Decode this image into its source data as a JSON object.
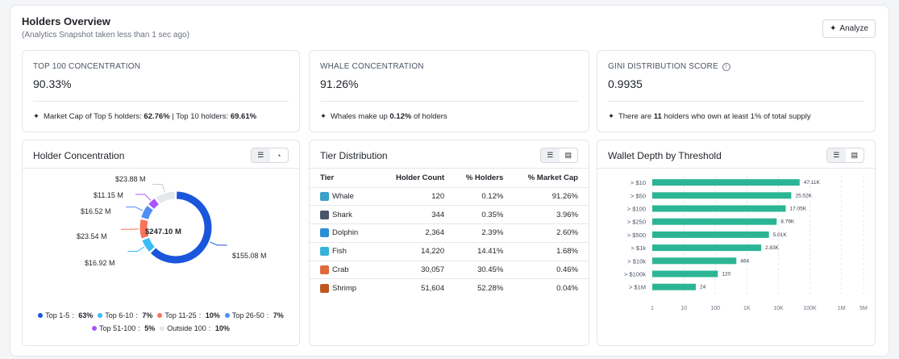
{
  "header": {
    "title": "Holders Overview",
    "subtitle": "(Analytics Snapshot taken less than 1 sec ago)",
    "analyze_label": "Analyze"
  },
  "stats": [
    {
      "label": "TOP 100 CONCENTRATION",
      "value": "90.33%",
      "note_parts": [
        "Market Cap of Top 5 holders: ",
        "62.76%",
        " | Top 10 holders: ",
        "69.61%"
      ]
    },
    {
      "label": "WHALE CONCENTRATION",
      "value": "91.26%",
      "note_parts": [
        "Whales make up ",
        "0.12%",
        " of holders",
        ""
      ]
    },
    {
      "label": "GINI DISTRIBUTION SCORE",
      "value": "0.9935",
      "note_parts": [
        "There are ",
        "11",
        " holders who own at least 1% of total supply",
        ""
      ]
    }
  ],
  "holder_concentration": {
    "title": "Holder Concentration",
    "center_label": "$247.10 M",
    "segments": [
      {
        "name": "Top 1-5",
        "pct": "63%",
        "fraction": 0.6276,
        "value_label": "$155.08 M",
        "color": "#1a56db"
      },
      {
        "name": "Top 6-10",
        "pct": "7%",
        "fraction": 0.0685,
        "value_label": "$16.92 M",
        "color": "#38bdf8"
      },
      {
        "name": "Top 11-25",
        "pct": "10%",
        "fraction": 0.0953,
        "value_label": "$23.54 M",
        "color": "#f97359"
      },
      {
        "name": "Top 26-50",
        "pct": "7%",
        "fraction": 0.0669,
        "value_label": "$16.52 M",
        "color": "#4f8ef7"
      },
      {
        "name": "Top 51-100",
        "pct": "5%",
        "fraction": 0.0451,
        "value_label": "$11.15 M",
        "color": "#a855f7"
      },
      {
        "name": "Outside 100",
        "pct": "10%",
        "fraction": 0.0966,
        "value_label": "$23.88 M",
        "color": "#e5e7eb"
      }
    ]
  },
  "tier_distribution": {
    "title": "Tier Distribution",
    "columns": [
      "Tier",
      "Holder Count",
      "% Holders",
      "% Market Cap"
    ],
    "rows": [
      {
        "tier": "Whale",
        "icon": "whale-icon",
        "count": "120",
        "holders": "0.12%",
        "mcap": "91.26%",
        "color": "#3aa0c9"
      },
      {
        "tier": "Shark",
        "icon": "shark-icon",
        "count": "344",
        "holders": "0.35%",
        "mcap": "3.96%",
        "color": "#4a5568"
      },
      {
        "tier": "Dolphin",
        "icon": "dolphin-icon",
        "count": "2,364",
        "holders": "2.39%",
        "mcap": "2.60%",
        "color": "#2b8fd6"
      },
      {
        "tier": "Fish",
        "icon": "fish-icon",
        "count": "14,220",
        "holders": "14.41%",
        "mcap": "1.68%",
        "color": "#38b2d8"
      },
      {
        "tier": "Crab",
        "icon": "crab-icon",
        "count": "30,057",
        "holders": "30.45%",
        "mcap": "0.46%",
        "color": "#e2683c"
      },
      {
        "tier": "Shrimp",
        "icon": "shrimp-icon",
        "count": "51,604",
        "holders": "52.28%",
        "mcap": "0.04%",
        "color": "#c05621"
      }
    ]
  },
  "chart_data": {
    "type": "bar",
    "title": "Wallet Depth by Threshold",
    "orientation": "horizontal",
    "x_scale": "log",
    "xlim": [
      1,
      5000000
    ],
    "x_ticks": [
      "1",
      "10",
      "100",
      "1K",
      "10K",
      "100K",
      "1M",
      "5M"
    ],
    "categories": [
      "> $10",
      "> $50",
      "> $100",
      "> $250",
      "> $500",
      "> $1k",
      "> $10k",
      "> $100k",
      "> $1M"
    ],
    "values": [
      47110,
      25520,
      17050,
      8790,
      5010,
      2830,
      464,
      120,
      24
    ],
    "value_labels": [
      "47.11K",
      "25.52K",
      "17.05K",
      "8.79K",
      "5.01K",
      "2.83K",
      "464",
      "120",
      "24"
    ],
    "bar_color": "#2bb594",
    "grid": true
  }
}
